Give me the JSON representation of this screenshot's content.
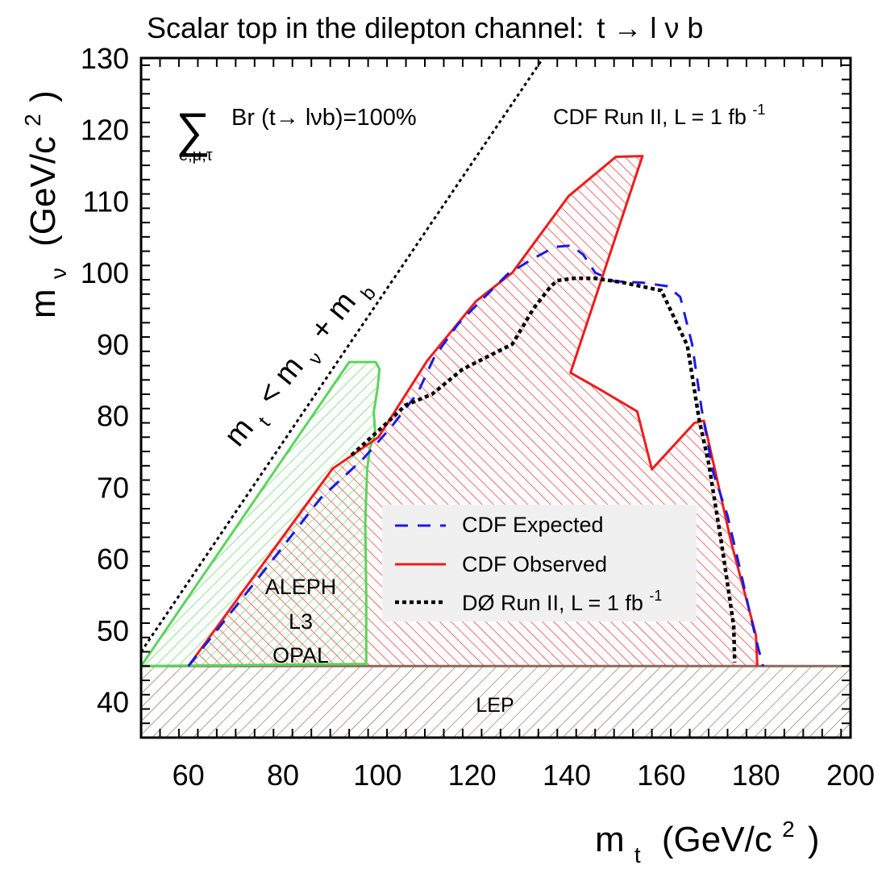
{
  "chart_data": {
    "type": "area",
    "title": {
      "main": "Scalar top in the dilepton channel:",
      "decay": "t → l ν b"
    },
    "xlabel": {
      "symbol": "m",
      "sub": "t",
      "units": "(GeV/c",
      "sup": "2",
      "close": ")"
    },
    "ylabel": {
      "symbol": "m",
      "sub": "ν",
      "units": "(GeV/c",
      "sup": "2",
      "close": ")"
    },
    "xlim": [
      50,
      200
    ],
    "ylim": [
      35,
      130
    ],
    "xticks": [
      60,
      80,
      100,
      120,
      140,
      160,
      180,
      200
    ],
    "yticks": [
      40,
      50,
      60,
      70,
      80,
      90,
      100,
      110,
      120,
      130
    ],
    "annotations": {
      "sum_symbol": "∑",
      "sum_sub": "e,μ,τ",
      "branching": "Br (t→ lνb)=100%",
      "experiment": "CDF Run II, L = 1 fb",
      "experiment_sup": "-1",
      "kinematic_pre": "m",
      "kinematic_sub1": "t",
      "kinematic_mid": "< m",
      "kinematic_sub2": "ν",
      "kinematic_post": "+ m",
      "kinematic_sub3": "b",
      "lep_regions": [
        "ALEPH",
        "L3",
        "OPAL"
      ],
      "lep_band": "LEP"
    },
    "legend": {
      "placement": "center-right",
      "entries": [
        {
          "label": "CDF Expected",
          "color": "#1a1ae6",
          "style": "dashed"
        },
        {
          "label": "CDF Observed",
          "color": "#ee1c1c",
          "style": "solid"
        },
        {
          "label": "DØ Run II, L = 1 fb",
          "sup": "-1",
          "color": "#000000",
          "style": "dotted"
        }
      ]
    },
    "series": [
      {
        "name": "CDF Observed",
        "color": "#ee1c1c",
        "x": [
          60.0,
          90.5,
          100.2,
          110.5,
          120.8,
          128.5,
          140.4,
          150.4,
          156.0,
          140.8,
          147.2,
          154.9,
          158.0,
          167.0,
          169.0,
          174.8,
          180.0,
          180.3
        ],
        "y": [
          45.0,
          72.6,
          77.0,
          87.7,
          96.0,
          100.0,
          110.7,
          116.2,
          116.3,
          86.0,
          83.6,
          80.6,
          72.5,
          79.0,
          79.3,
          62.2,
          49.3,
          45.0
        ]
      },
      {
        "name": "CDF Expected",
        "color": "#1a1ae6",
        "x": [
          60.0,
          78.0,
          88.0,
          97.0,
          103.0,
          108.5,
          112.0,
          117.0,
          121.0,
          127.5,
          133.0,
          137.5,
          141.0,
          143.5,
          146.0,
          150.0,
          156.0,
          161.3,
          164.0,
          166.5,
          168.5,
          171.0,
          174.0,
          177.0,
          179.0,
          180.5,
          181.5
        ],
        "y": [
          45.0,
          60.0,
          68.5,
          74.0,
          78.5,
          83.2,
          88.2,
          92.8,
          95.5,
          99.8,
          102.0,
          103.6,
          103.8,
          102.5,
          100.0,
          98.8,
          98.6,
          98.1,
          96.6,
          90.0,
          81.0,
          72.0,
          66.0,
          57.5,
          51.6,
          47.5,
          45.0
        ]
      },
      {
        "name": "DØ Run II, L = 1 fb-1",
        "color": "#000000",
        "x": [
          94.5,
          101.0,
          106.0,
          111.5,
          118.0,
          128.5,
          133.0,
          136.5,
          138.0,
          141.5,
          146.0,
          152.0,
          160.0,
          165.5,
          168.0,
          170.0,
          173.0,
          175.3,
          175.5
        ],
        "y": [
          74.5,
          78.4,
          81.5,
          83.0,
          86.5,
          90.0,
          95.0,
          98.0,
          98.9,
          99.2,
          99.2,
          98.6,
          97.5,
          89.8,
          79.4,
          73.4,
          61.0,
          50.6,
          45.5
        ]
      },
      {
        "name": "ALEPH L3 OPAL",
        "color": "#5bd45b",
        "x": [
          50.0,
          94.0,
          99.6,
          100.4,
          100.0,
          99.6,
          99.2,
          99.5,
          98.4,
          97.8,
          97.4,
          97.6,
          97.6
        ],
        "y": [
          45.0,
          87.5,
          87.5,
          86.5,
          83.8,
          82.2,
          80.5,
          77.5,
          75.5,
          72.5,
          65.0,
          55.0,
          45.3
        ]
      },
      {
        "name": "LEP",
        "color": "#8a6a5a",
        "x": [
          50.0,
          200.0
        ],
        "y": [
          35.0,
          45.0
        ]
      },
      {
        "name": "m_t < m_nu + m_b",
        "color": "#000000",
        "x": [
          50.0,
          135.0
        ],
        "y": [
          47.0,
          130.0
        ]
      }
    ]
  }
}
